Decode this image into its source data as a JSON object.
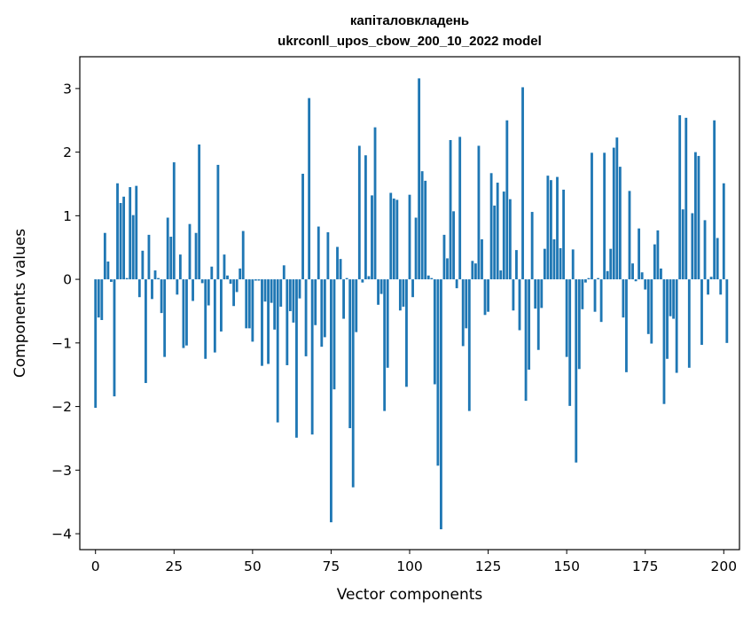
{
  "chart_data": {
    "type": "bar",
    "title_line1": "капіталовкладень",
    "title_line2": "ukrconll_upos_cbow_200_10_2022 model",
    "xlabel": "Vector components",
    "ylabel": "Components values",
    "xlim": [
      -5,
      205
    ],
    "ylim": [
      -4.25,
      3.5
    ],
    "xticks": [
      0,
      25,
      50,
      75,
      100,
      125,
      150,
      175,
      200
    ],
    "yticks": [
      -4,
      -3,
      -2,
      -1,
      0,
      1,
      2,
      3
    ],
    "ytick_labels": [
      "−4",
      "−3",
      "−2",
      "−1",
      "0",
      "1",
      "2",
      "3"
    ],
    "bar_color": "#1f77b4",
    "values": [
      -2.02,
      -0.6,
      -0.64,
      0.73,
      0.28,
      -0.04,
      -1.84,
      1.51,
      1.2,
      1.3,
      0.02,
      1.45,
      1.01,
      1.47,
      -0.28,
      0.45,
      -1.63,
      0.7,
      -0.31,
      0.14,
      0.02,
      -0.53,
      -1.22,
      0.97,
      0.67,
      1.84,
      -0.24,
      0.39,
      -1.08,
      -1.04,
      0.87,
      -0.34,
      0.73,
      2.12,
      -0.06,
      -1.25,
      -0.41,
      0.2,
      -1.15,
      1.8,
      -0.82,
      0.39,
      0.06,
      -0.07,
      -0.42,
      -0.2,
      0.17,
      0.76,
      -0.77,
      -0.77,
      -0.98,
      -0.02,
      -0.02,
      -1.36,
      -0.35,
      -1.33,
      -0.37,
      -0.79,
      -2.25,
      -0.43,
      0.22,
      -1.35,
      -0.5,
      -0.68,
      -2.49,
      -0.3,
      1.66,
      -1.21,
      2.85,
      -2.44,
      -0.72,
      0.83,
      -1.06,
      -0.91,
      0.74,
      -3.82,
      -1.73,
      0.51,
      0.32,
      -0.62,
      0.02,
      -2.34,
      -3.27,
      -0.83,
      2.1,
      -0.05,
      1.95,
      0.05,
      1.32,
      2.39,
      -0.4,
      -0.23,
      -2.07,
      -1.39,
      1.36,
      1.27,
      1.25,
      -0.49,
      -0.43,
      -1.69,
      1.33,
      -0.28,
      0.97,
      3.16,
      1.7,
      1.55,
      0.06,
      0.02,
      -1.65,
      -2.93,
      -3.93,
      0.7,
      0.33,
      2.19,
      1.07,
      -0.14,
      2.24,
      -1.05,
      -0.77,
      -2.07,
      0.29,
      0.25,
      2.1,
      0.63,
      -0.56,
      -0.51,
      1.67,
      1.16,
      1.52,
      0.14,
      1.38,
      2.5,
      1.26,
      -0.49,
      0.46,
      -0.8,
      3.02,
      -1.91,
      -1.42,
      1.06,
      -0.46,
      -1.11,
      -0.45,
      0.48,
      1.63,
      1.56,
      0.63,
      1.61,
      0.49,
      1.41,
      -1.22,
      -1.99,
      0.47,
      -2.88,
      -1.41,
      -0.47,
      -0.05,
      0.02,
      1.99,
      -0.51,
      0.02,
      -0.67,
      1.99,
      0.13,
      0.48,
      2.07,
      2.23,
      1.77,
      -0.6,
      -1.46,
      1.39,
      0.25,
      -0.03,
      0.8,
      0.11,
      -0.16,
      -0.86,
      -1.01,
      0.55,
      0.77,
      0.17,
      -1.96,
      -1.25,
      -0.58,
      -0.62,
      -1.47,
      2.58,
      1.1,
      2.54,
      -1.39,
      1.04,
      2.0,
      1.94,
      -1.03,
      0.93,
      -0.24,
      0.04,
      2.5,
      0.65,
      -0.24,
      1.51,
      -1.0
    ]
  }
}
